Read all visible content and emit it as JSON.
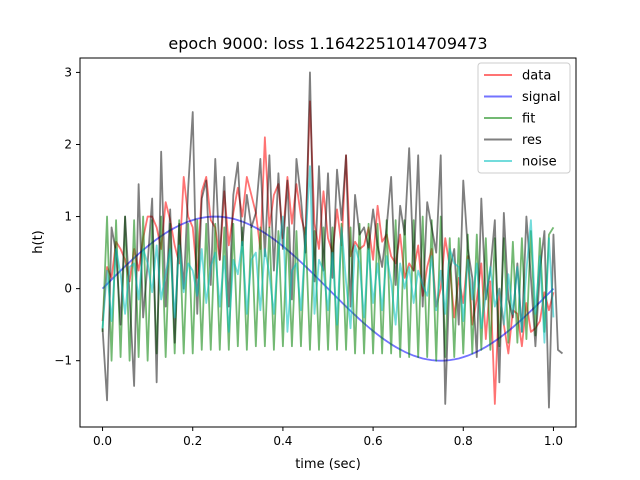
{
  "chart_data": {
    "type": "line",
    "title": "epoch 9000: loss 1.1642251014709473",
    "xlabel": "time (sec)",
    "ylabel": "h(t)",
    "xlim": [
      -0.05,
      1.05
    ],
    "ylim": [
      -1.92,
      3.2
    ],
    "xticks": [
      0.0,
      0.2,
      0.4,
      0.6,
      0.8,
      1.0
    ],
    "xtick_labels": [
      "0.0",
      "0.2",
      "0.4",
      "0.6",
      "0.8",
      "1.0"
    ],
    "yticks": [
      -1,
      0,
      1,
      2,
      3
    ],
    "ytick_labels": [
      "−1",
      "0",
      "1",
      "2",
      "3"
    ],
    "grid": false,
    "legend_position": "top-right",
    "x_step": 0.01,
    "series": [
      {
        "name": "data",
        "color": "#ff0000",
        "alpha": 0.55,
        "values": [
          -0.45,
          0.3,
          0.15,
          0.65,
          0.55,
          0.4,
          0.1,
          0.55,
          0.25,
          0.7,
          1.0,
          1.0,
          0.85,
          0.55,
          1.2,
          0.95,
          0.6,
          0.35,
          1.55,
          1.0,
          0.85,
          0.15,
          1.35,
          1.55,
          0.95,
          0.85,
          0.4,
          1.35,
          0.6,
          1.05,
          1.4,
          1.0,
          1.55,
          1.3,
          1.05,
          0.55,
          2.1,
          0.85,
          1.3,
          1.45,
          0.7,
          1.55,
          0.9,
          1.45,
          1.0,
          0.75,
          2.6,
          0.9,
          0.55,
          1.35,
          0.7,
          0.5,
          1.1,
          0.6,
          1.85,
          0.45,
          0.65,
          0.55,
          0.6,
          0.85,
          0.4,
          1.15,
          0.65,
          0.75,
          0.45,
          0.35,
          0.75,
          0.15,
          0.35,
          0.25,
          0.6,
          -0.1,
          0.3,
          0.55,
          -0.25,
          0.0,
          0.7,
          0.3,
          -0.4,
          0.15,
          -0.2,
          0.45,
          -0.5,
          -0.15,
          0.35,
          -0.7,
          0.1,
          -1.6,
          0.0,
          -0.5,
          -0.9,
          -0.3,
          -0.35,
          -0.8,
          -0.2,
          -0.6,
          -0.55,
          -0.45,
          -0.05,
          -0.3,
          -0.05
        ]
      },
      {
        "name": "signal",
        "color": "#0000ff",
        "alpha": 0.55,
        "values": [
          0.0,
          0.063,
          0.125,
          0.187,
          0.249,
          0.309,
          0.368,
          0.426,
          0.482,
          0.536,
          0.588,
          0.637,
          0.685,
          0.729,
          0.771,
          0.809,
          0.844,
          0.876,
          0.905,
          0.93,
          0.951,
          0.969,
          0.982,
          0.992,
          0.998,
          1.0,
          0.998,
          0.992,
          0.982,
          0.969,
          0.951,
          0.93,
          0.905,
          0.876,
          0.844,
          0.809,
          0.771,
          0.729,
          0.685,
          0.637,
          0.588,
          0.536,
          0.482,
          0.426,
          0.368,
          0.309,
          0.249,
          0.187,
          0.125,
          0.063,
          0.0,
          -0.063,
          -0.125,
          -0.187,
          -0.249,
          -0.309,
          -0.368,
          -0.426,
          -0.482,
          -0.536,
          -0.588,
          -0.637,
          -0.685,
          -0.729,
          -0.771,
          -0.809,
          -0.844,
          -0.876,
          -0.905,
          -0.93,
          -0.951,
          -0.969,
          -0.982,
          -0.992,
          -0.998,
          -1.0,
          -0.998,
          -0.992,
          -0.982,
          -0.969,
          -0.951,
          -0.93,
          -0.905,
          -0.876,
          -0.844,
          -0.809,
          -0.771,
          -0.729,
          -0.685,
          -0.637,
          -0.588,
          -0.536,
          -0.482,
          -0.426,
          -0.368,
          -0.309,
          -0.249,
          -0.187,
          -0.125,
          -0.063,
          0.0
        ],
        "x_values": [
          0.0,
          0.01,
          0.02,
          0.03,
          0.04,
          0.05,
          0.06,
          0.07,
          0.08,
          0.09,
          0.1,
          0.11,
          0.12,
          0.13,
          0.14,
          0.15,
          0.16,
          0.17,
          0.18,
          0.19,
          0.2,
          0.21,
          0.22,
          0.23,
          0.24,
          0.25,
          0.26,
          0.27,
          0.28,
          0.29,
          0.3,
          0.31,
          0.32,
          0.33,
          0.34,
          0.35,
          0.36,
          0.37,
          0.38,
          0.39,
          0.4,
          0.41,
          0.42,
          0.43,
          0.44,
          0.45,
          0.46,
          0.47,
          0.48,
          0.49,
          0.5,
          0.51,
          0.52,
          0.53,
          0.54,
          0.55,
          0.56,
          0.57,
          0.58,
          0.59,
          0.6,
          0.61,
          0.62,
          0.63,
          0.64,
          0.65,
          0.66,
          0.67,
          0.68,
          0.69,
          0.7,
          0.71,
          0.72,
          0.73,
          0.74,
          0.75,
          0.76,
          0.77,
          0.78,
          0.79,
          0.8,
          0.81,
          0.82,
          0.83,
          0.84,
          0.85,
          0.86,
          0.87,
          0.88,
          0.89,
          0.9,
          0.91,
          0.92,
          0.93,
          0.94,
          0.95,
          0.96,
          0.97,
          0.98,
          0.99,
          1.0
        ]
      },
      {
        "name": "fit",
        "color": "#008000",
        "alpha": 0.55,
        "values": [
          -0.6,
          1.0,
          -1.0,
          0.95,
          -0.95,
          1.0,
          -1.0,
          0.95,
          -0.95,
          1.0,
          -1.0,
          0.95,
          -0.9,
          1.0,
          -0.95,
          0.9,
          -0.9,
          0.95,
          -0.9,
          0.9,
          -0.9,
          0.95,
          -0.85,
          0.9,
          -0.85,
          0.9,
          -0.85,
          0.85,
          -0.85,
          0.9,
          -0.8,
          0.85,
          -0.85,
          0.85,
          -0.8,
          0.85,
          -0.8,
          0.85,
          -0.85,
          0.8,
          -0.8,
          0.85,
          -0.8,
          0.8,
          -0.8,
          0.85,
          -0.85,
          0.8,
          -0.85,
          0.85,
          -0.85,
          0.85,
          -0.85,
          0.9,
          -0.85,
          0.85,
          -0.9,
          0.9,
          -0.9,
          0.9,
          -0.9,
          0.9,
          -0.9,
          0.95,
          -0.9,
          0.95,
          -0.95,
          0.95,
          -0.95,
          0.95,
          -0.95,
          1.0,
          -0.95,
          0.95,
          -1.0,
          1.0,
          -0.95,
          0.7,
          -0.95,
          0.7,
          -0.9,
          0.75,
          -0.9,
          0.75,
          -0.85,
          0.7,
          -0.85,
          0.7,
          -0.8,
          0.7,
          -0.75,
          0.65,
          -0.75,
          0.7,
          -0.7,
          0.8,
          -0.65,
          0.7,
          -0.6,
          0.75,
          0.85
        ]
      },
      {
        "name": "res",
        "color": "#000000",
        "alpha": 0.5,
        "values": [
          -0.55,
          -1.55,
          0.85,
          0.5,
          -0.5,
          1.0,
          -0.1,
          -1.35,
          1.45,
          -0.4,
          0.35,
          1.25,
          -1.3,
          1.9,
          -0.25,
          1.1,
          -0.75,
          0.9,
          0.0,
          1.4,
          2.45,
          -0.35,
          1.25,
          1.5,
          0.05,
          1.8,
          0.4,
          1.55,
          -0.25,
          1.3,
          1.75,
          0.6,
          1.3,
          0.85,
          1.05,
          1.8,
          0.45,
          1.85,
          0.25,
          1.6,
          0.55,
          1.5,
          -0.15,
          1.8,
          1.25,
          0.5,
          3.0,
          0.1,
          1.7,
          0.25,
          1.6,
          0.15,
          1.65,
          0.95,
          1.85,
          -0.25,
          1.3,
          0.75,
          0.85,
          0.55,
          1.1,
          0.6,
          0.3,
          0.85,
          1.55,
          0.05,
          1.15,
          0.75,
          1.95,
          0.25,
          1.85,
          -0.25,
          1.2,
          0.85,
          0.5,
          1.85,
          -1.6,
          0.25,
          0.55,
          -0.5,
          1.5,
          0.55,
          0.15,
          -0.95,
          1.25,
          -0.15,
          0.25,
          0.95,
          -1.3,
          1.05,
          -0.15,
          -0.4,
          0.35,
          -0.6,
          1.0,
          0.15,
          -0.8,
          0.25,
          0.8,
          -1.65,
          0.75,
          -0.85,
          -0.9
        ]
      },
      {
        "name": "noise",
        "color": "#00bfbf",
        "alpha": 0.55,
        "values": [
          -0.55,
          0.25,
          -0.45,
          0.55,
          0.2,
          -0.35,
          0.3,
          0.35,
          -0.15,
          0.55,
          0.35,
          -0.05,
          0.6,
          -0.15,
          0.2,
          0.55,
          -0.4,
          0.6,
          -0.05,
          0.35,
          0.25,
          -0.1,
          0.55,
          -0.2,
          0.3,
          0.5,
          -0.25,
          0.45,
          -0.6,
          0.4,
          0.2,
          0.65,
          -0.35,
          0.4,
          0.5,
          -0.3,
          0.55,
          0.2,
          -0.35,
          0.5,
          1.0,
          -0.6,
          0.25,
          0.35,
          -0.3,
          0.65,
          1.7,
          -0.35,
          0.4,
          0.25,
          -0.3,
          0.5,
          -0.5,
          0.85,
          0.1,
          -0.55,
          0.6,
          0.35,
          -0.4,
          0.55,
          -0.2,
          0.35,
          -0.3,
          0.45,
          0.1,
          -0.5,
          0.35,
          0.0,
          0.3,
          -0.2,
          0.25,
          0.05,
          -0.1,
          0.45,
          -0.3,
          0.25,
          -0.35,
          0.55,
          0.35,
          0.3,
          -0.45,
          0.4,
          -0.15,
          0.35,
          -0.55,
          -0.1,
          0.3,
          -0.25,
          0.0,
          -0.5,
          0.2,
          -0.35,
          0.3,
          -0.6,
          0.25,
          0.95,
          -0.35,
          0.45,
          -0.75,
          0.7,
          -0.4
        ]
      }
    ]
  }
}
